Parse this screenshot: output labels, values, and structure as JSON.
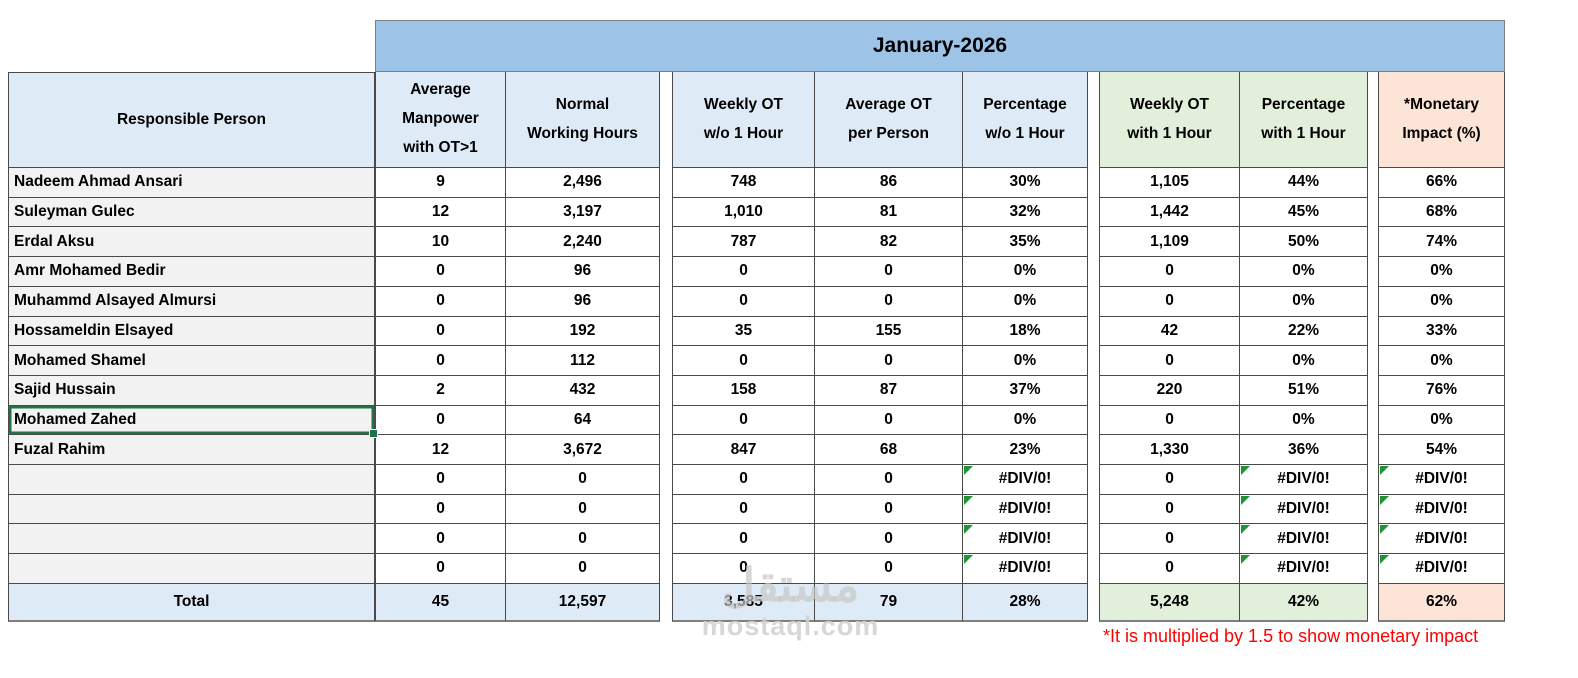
{
  "title": "January-2026",
  "person_header": "Responsible Person",
  "headers": [
    "Average\nManpower\nwith OT>1",
    "Normal\nWorking Hours",
    "Weekly OT\nw/o 1 Hour",
    "Average OT\nper Person",
    "Percentage\nw/o 1 Hour",
    "Weekly OT\nwith 1 Hour",
    "Percentage\nwith 1 Hour",
    "*Monetary\nImpact (%)"
  ],
  "error_value": "#DIV/0!",
  "rows": [
    {
      "name": "Nadeem Ahmad Ansari",
      "selected": false,
      "values": [
        "9",
        "2,496",
        "748",
        "86",
        "30%",
        "1,105",
        "44%",
        "66%"
      ]
    },
    {
      "name": "Suleyman Gulec",
      "selected": false,
      "values": [
        "12",
        "3,197",
        "1,010",
        "81",
        "32%",
        "1,442",
        "45%",
        "68%"
      ]
    },
    {
      "name": "Erdal Aksu",
      "selected": false,
      "values": [
        "10",
        "2,240",
        "787",
        "82",
        "35%",
        "1,109",
        "50%",
        "74%"
      ]
    },
    {
      "name": "Amr Mohamed Bedir",
      "selected": false,
      "values": [
        "0",
        "96",
        "0",
        "0",
        "0%",
        "0",
        "0%",
        "0%"
      ]
    },
    {
      "name": "Muhammd Alsayed Almursi",
      "selected": false,
      "values": [
        "0",
        "96",
        "0",
        "0",
        "0%",
        "0",
        "0%",
        "0%"
      ]
    },
    {
      "name": "Hossameldin Elsayed",
      "selected": false,
      "values": [
        "0",
        "192",
        "35",
        "155",
        "18%",
        "42",
        "22%",
        "33%"
      ]
    },
    {
      "name": "Mohamed Shamel",
      "selected": false,
      "values": [
        "0",
        "112",
        "0",
        "0",
        "0%",
        "0",
        "0%",
        "0%"
      ]
    },
    {
      "name": "Sajid Hussain",
      "selected": false,
      "values": [
        "2",
        "432",
        "158",
        "87",
        "37%",
        "220",
        "51%",
        "76%"
      ]
    },
    {
      "name": "Mohamed Zahed",
      "selected": true,
      "values": [
        "0",
        "64",
        "0",
        "0",
        "0%",
        "0",
        "0%",
        "0%"
      ]
    },
    {
      "name": "Fuzal Rahim",
      "selected": false,
      "values": [
        "12",
        "3,672",
        "847",
        "68",
        "23%",
        "1,330",
        "36%",
        "54%"
      ]
    },
    {
      "name": "",
      "selected": false,
      "values": [
        "0",
        "0",
        "0",
        "0",
        "#DIV/0!",
        "0",
        "#DIV/0!",
        "#DIV/0!"
      ]
    },
    {
      "name": "",
      "selected": false,
      "values": [
        "0",
        "0",
        "0",
        "0",
        "#DIV/0!",
        "0",
        "#DIV/0!",
        "#DIV/0!"
      ]
    },
    {
      "name": "",
      "selected": false,
      "values": [
        "0",
        "0",
        "0",
        "0",
        "#DIV/0!",
        "0",
        "#DIV/0!",
        "#DIV/0!"
      ]
    },
    {
      "name": "",
      "selected": false,
      "values": [
        "0",
        "0",
        "0",
        "0",
        "#DIV/0!",
        "0",
        "#DIV/0!",
        "#DIV/0!"
      ]
    }
  ],
  "total": {
    "label": "Total",
    "values": [
      "45",
      "12,597",
      "3,585",
      "79",
      "28%",
      "5,248",
      "42%",
      "62%"
    ]
  },
  "footnote": "*It is multiplied by 1.5 to show monetary impact",
  "watermark": {
    "logo": "مستقل",
    "domain": "mostaql.com"
  },
  "colors": {
    "band_blue": "#9DC3E6",
    "header_blue": "#DEEBF7",
    "header_green": "#E2EFDA",
    "header_salmon": "#FCE4D6",
    "name_fill": "#F2F2F2",
    "selection_green": "#217346",
    "error_triangle_green": "#1F9336",
    "footnote_red": "#FF0000"
  }
}
